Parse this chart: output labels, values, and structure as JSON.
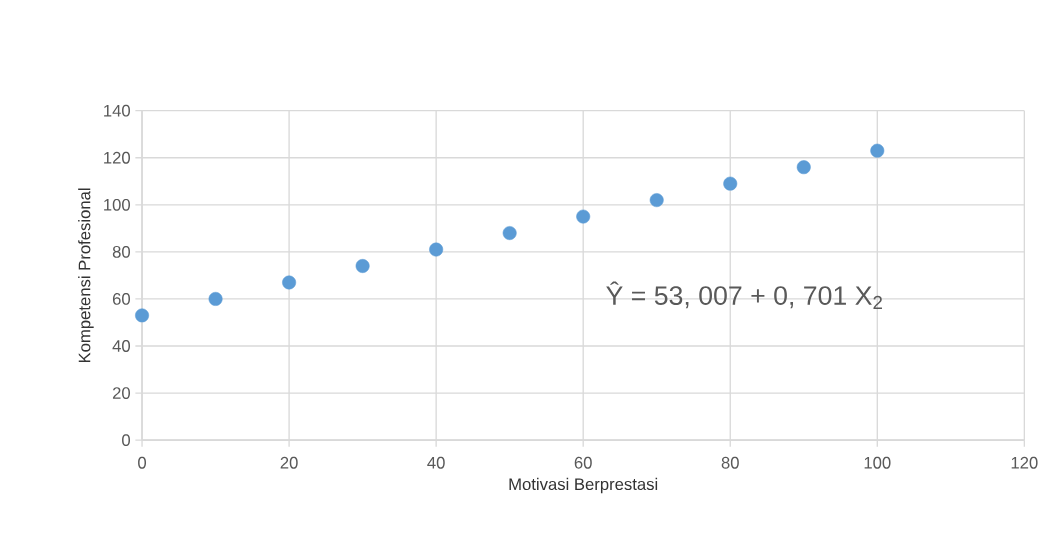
{
  "chart_data": {
    "type": "scatter",
    "xlabel": "Motivasi Berprestasi",
    "ylabel": "Kompetensi Profesional",
    "x": [
      0,
      10,
      20,
      30,
      40,
      50,
      60,
      70,
      80,
      90,
      100
    ],
    "series": [
      {
        "color": "#5b9bd5",
        "values": [
          53,
          60,
          67,
          74,
          81,
          88,
          95,
          102,
          109,
          116,
          123
        ]
      }
    ],
    "xlim": [
      0,
      120
    ],
    "ylim": [
      0,
      140
    ],
    "xticks": [
      0,
      20,
      40,
      60,
      80,
      100,
      120
    ],
    "yticks": [
      0,
      20,
      40,
      60,
      80,
      100,
      120,
      140
    ],
    "grid": true,
    "marker": "circle",
    "annotations": [
      "Ŷ = 53, 007 + 0, 701 X$_{2}$"
    ]
  }
}
